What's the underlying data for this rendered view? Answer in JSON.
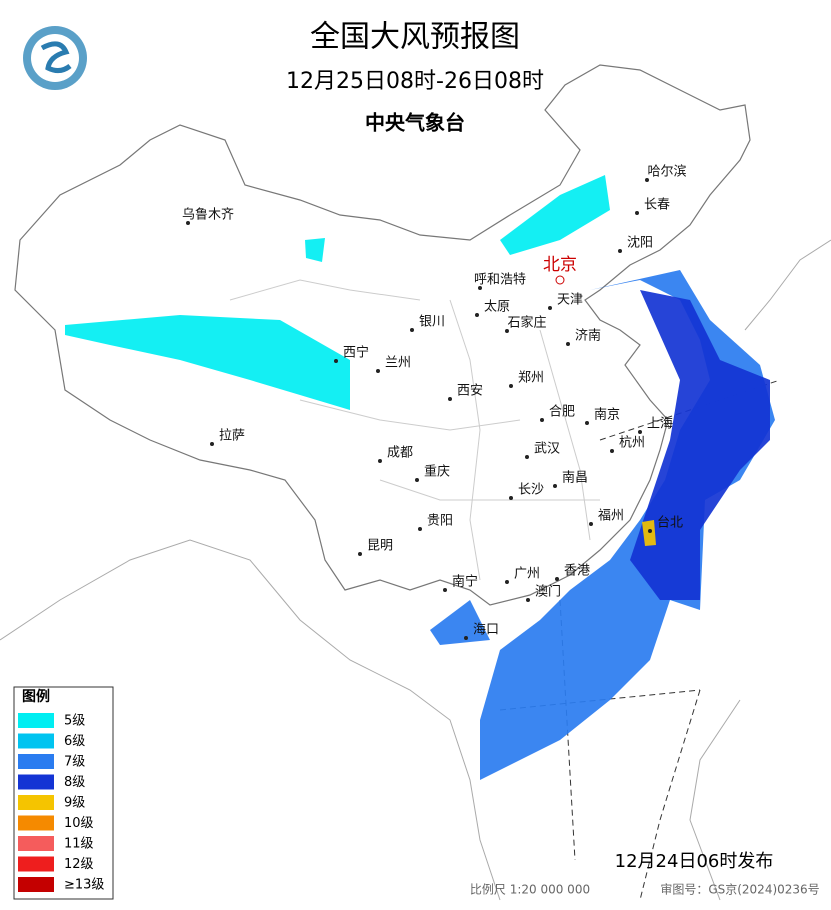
{
  "header": {
    "title": "全国大风预报图",
    "period": "12月25日08时-26日08时",
    "issuer": "中央气象台"
  },
  "capital": "北京",
  "cities": [
    "乌鲁木齐",
    "哈尔滨",
    "长春",
    "沈阳",
    "呼和浩特",
    "天津",
    "太原",
    "石家庄",
    "银川",
    "济南",
    "西宁",
    "兰州",
    "郑州",
    "西安",
    "合肥",
    "南京",
    "上海",
    "拉萨",
    "杭州",
    "成都",
    "武汉",
    "重庆",
    "南昌",
    "长沙",
    "福州",
    "台北",
    "贵阳",
    "昆明",
    "南宁",
    "广州",
    "香港",
    "澳门",
    "海口"
  ],
  "legend": {
    "title": "图例",
    "items": [
      {
        "label": "5级",
        "color": "#00eef2"
      },
      {
        "label": "6级",
        "color": "#00c4f0"
      },
      {
        "label": "7级",
        "color": "#2a7cf0"
      },
      {
        "label": "8级",
        "color": "#1434d4"
      },
      {
        "label": "9级",
        "color": "#f5c400"
      },
      {
        "label": "10级",
        "color": "#f58a00"
      },
      {
        "label": "11级",
        "color": "#f55c5c"
      },
      {
        "label": "12级",
        "color": "#ee1e1e"
      },
      {
        "label": "≥13级",
        "color": "#c40000"
      }
    ]
  },
  "footer": {
    "published": "12月24日06时发布",
    "scale": "比例尺 1:20 000 000",
    "approval": "审图号：GS京(2024)0236号"
  }
}
